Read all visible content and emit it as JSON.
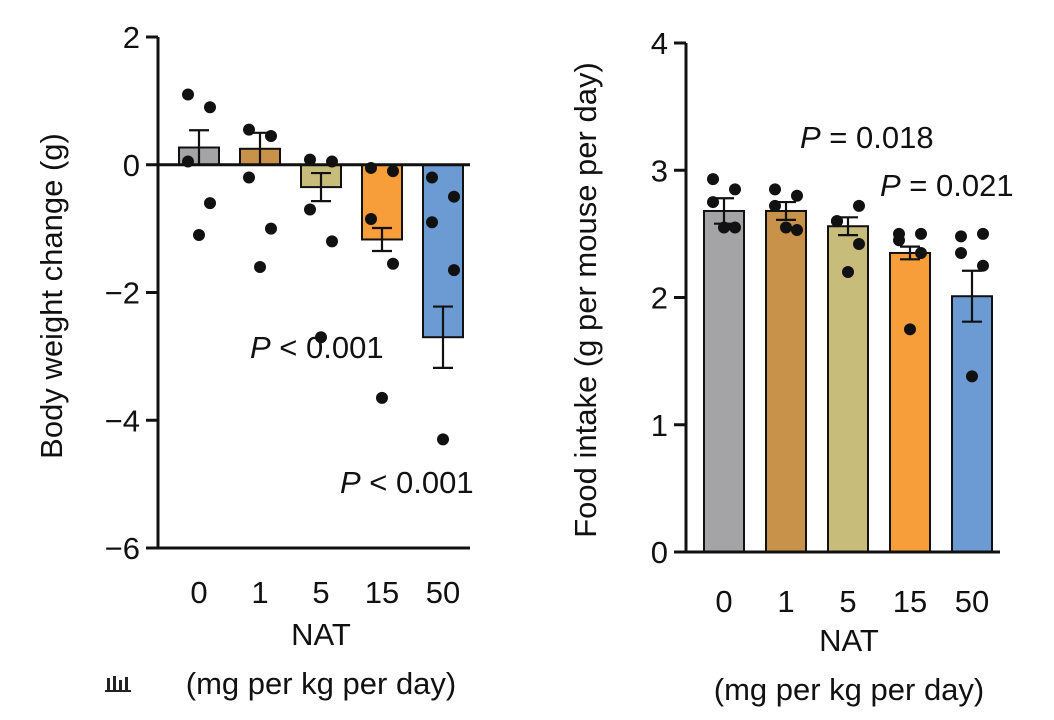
{
  "chart_data": [
    {
      "type": "bar",
      "title": "",
      "ylabel": "Body weight change (g)",
      "xlabel_line1": "NAT",
      "xlabel_line2": "(mg per kg per day)",
      "categories": [
        "0",
        "1",
        "5",
        "15",
        "50"
      ],
      "values": [
        0.27,
        0.25,
        -0.35,
        -1.17,
        -2.7
      ],
      "errors": [
        0.27,
        0.25,
        0.22,
        0.18,
        0.48
      ],
      "points": [
        [
          1.1,
          0.55,
          0.08,
          -0.05,
          -0.2
        ],
        [
          0.9,
          0.45,
          0.05,
          -0.1,
          -0.5
        ],
        [
          0.05,
          -0.2,
          -0.7,
          -0.85,
          -0.9
        ],
        [
          -0.6,
          -1.0,
          -1.2,
          -1.55,
          -1.65
        ],
        [
          -1.1,
          -1.6,
          -2.7,
          -3.65,
          -4.3
        ]
      ],
      "colors": [
        "#a4a4a6",
        "#c8924a",
        "#c8bc7a",
        "#f79d3a",
        "#6b9bd2"
      ],
      "ylim": [
        -6,
        2
      ],
      "yticks": [
        2,
        0,
        -2,
        -4,
        -6
      ],
      "ytick_labels": [
        "2",
        "0",
        "−2",
        "−4",
        "−6"
      ],
      "annotations": [
        {
          "p": "P",
          "rest": " < 0.001",
          "category": "15"
        },
        {
          "p": "P",
          "rest": " < 0.001",
          "category": "50"
        }
      ]
    },
    {
      "type": "bar",
      "title": "",
      "ylabel": "Food intake (g per mouse per day)",
      "xlabel_line1": "NAT",
      "xlabel_line2": "(mg per kg per day)",
      "categories": [
        "0",
        "1",
        "5",
        "15",
        "50"
      ],
      "values": [
        2.68,
        2.68,
        2.56,
        2.35,
        2.01
      ],
      "errors": [
        0.1,
        0.07,
        0.07,
        0.05,
        0.2
      ],
      "points": [
        [
          2.93,
          2.85,
          2.6,
          2.5,
          2.48
        ],
        [
          2.85,
          2.8,
          2.72,
          2.5,
          2.5
        ],
        [
          2.75,
          2.72,
          2.6,
          2.45,
          2.35
        ],
        [
          2.55,
          2.53,
          2.42,
          2.35,
          2.25
        ],
        [
          2.55,
          2.55,
          2.2,
          1.75,
          1.38
        ]
      ],
      "colors": [
        "#a4a4a6",
        "#c8924a",
        "#c8bc7a",
        "#f79d3a",
        "#6b9bd2"
      ],
      "ylim": [
        0,
        4
      ],
      "yticks": [
        4,
        3,
        2,
        1,
        0
      ],
      "ytick_labels": [
        "4",
        "3",
        "2",
        "1",
        "0"
      ],
      "annotations": [
        {
          "p": "P",
          "rest": " = 0.018",
          "category": "15"
        },
        {
          "p": "P",
          "rest": " = 0.021",
          "category": "50"
        }
      ]
    }
  ],
  "watermark": {
    "icon": "logo-mark-icon"
  }
}
